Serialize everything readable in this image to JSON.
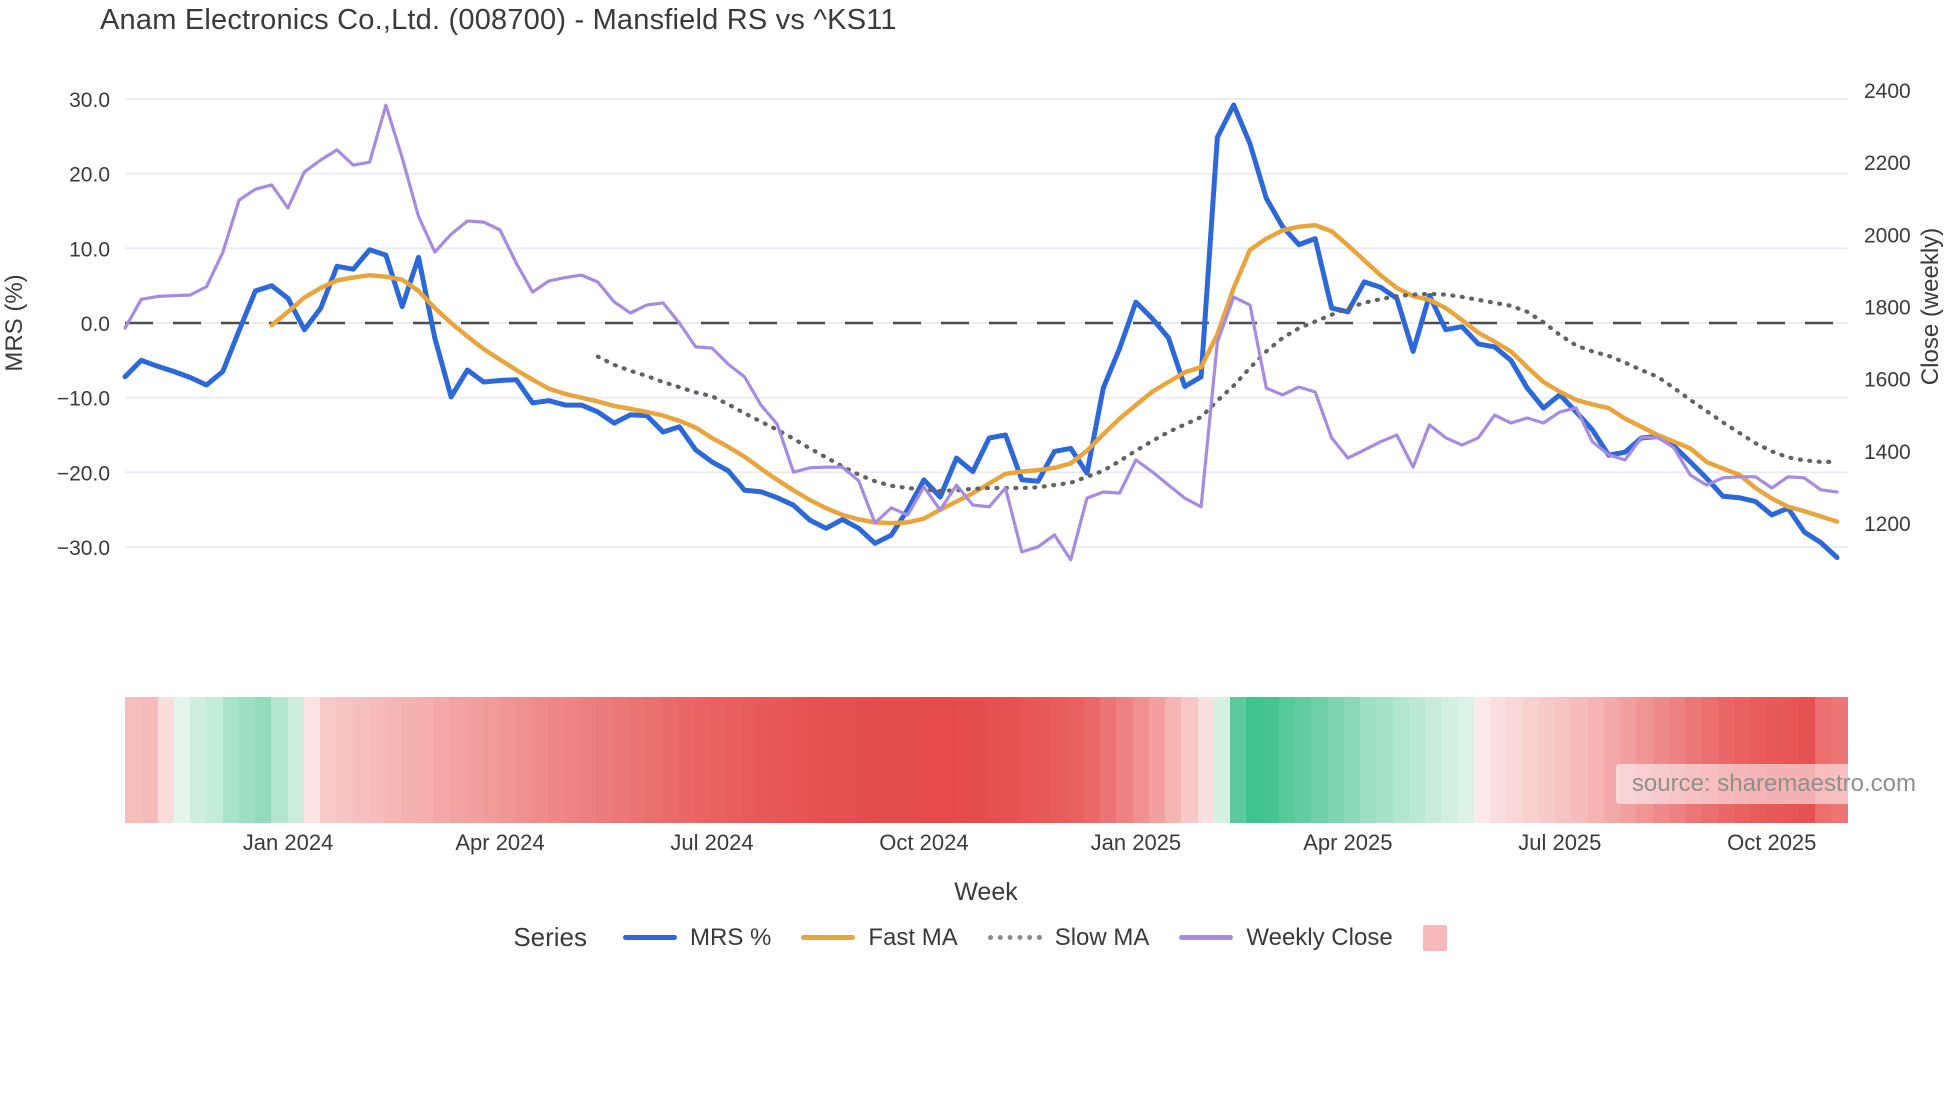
{
  "title": "Anam Electronics Co.,Ltd. (008700) - Mansfield RS vs ^KS11",
  "watermark": "source: sharemaestro.com",
  "legend": {
    "series_label": "Series",
    "items": [
      {
        "label": "MRS %",
        "style": "solid",
        "color": "#2d68d8"
      },
      {
        "label": "Fast MA",
        "style": "solid",
        "color": "#e9a53d"
      },
      {
        "label": "Slow MA",
        "style": "dotted",
        "color": "#8a8a8a"
      },
      {
        "label": "Weekly Close",
        "style": "solid",
        "color": "#a68ce0"
      },
      {
        "label": "",
        "style": "square",
        "color": "#f6b9bd"
      }
    ]
  },
  "chart_data": {
    "type": "line",
    "title": "Anam Electronics Co.,Ltd. (008700) - Mansfield RS vs ^KS11",
    "xlabel": "Week",
    "ylabel_left": "MRS (%)",
    "ylabel_right": "Close (weekly)",
    "ylim_left": [
      -30,
      30
    ],
    "ylim_right": [
      1200,
      2400
    ],
    "grid": "horizontal",
    "legend_position": "bottom",
    "x_unit": "week_index",
    "n_points": 106,
    "x_ticks": [
      {
        "label": "Jan 2024",
        "week": 10
      },
      {
        "label": "Apr 2024",
        "week": 23
      },
      {
        "label": "Jul 2024",
        "week": 36
      },
      {
        "label": "Oct 2024",
        "week": 49
      },
      {
        "label": "Jan 2025",
        "week": 62
      },
      {
        "label": "Apr 2025",
        "week": 75
      },
      {
        "label": "Jul 2025",
        "week": 88
      },
      {
        "label": "Oct 2025",
        "week": 101
      }
    ],
    "y_ticks_left": [
      {
        "label": "30.0",
        "value": 30
      },
      {
        "label": "20.0",
        "value": 20
      },
      {
        "label": "10.0",
        "value": 10
      },
      {
        "label": "0.0",
        "value": 0
      },
      {
        "label": "−10.0",
        "value": -10
      },
      {
        "label": "−20.0",
        "value": -20
      },
      {
        "label": "−30.0",
        "value": -30
      }
    ],
    "y_ticks_right": [
      {
        "label": "2400",
        "value": 2400
      },
      {
        "label": "2200",
        "value": 2200
      },
      {
        "label": "2000",
        "value": 2000
      },
      {
        "label": "1800",
        "value": 1800
      },
      {
        "label": "1600",
        "value": 1600
      },
      {
        "label": "1400",
        "value": 1400
      },
      {
        "label": "1200",
        "value": 1200
      }
    ],
    "zero_line": {
      "axis": "left",
      "value": 0,
      "style": "dashed",
      "color": "#4d4d4d"
    },
    "series": [
      {
        "name": "MRS %",
        "axis": "left",
        "color": "#2d68d8",
        "width": 5,
        "dash": null,
        "values": [
          -7.2,
          -5.0,
          -5.8,
          -6.5,
          -7.3,
          -8.3,
          -6.5,
          -1.0,
          4.3,
          5.0,
          3.3,
          -0.9,
          2.0,
          7.6,
          7.2,
          9.8,
          9.1,
          2.2,
          8.8,
          -2.0,
          -9.9,
          -6.3,
          -7.9,
          -7.7,
          -7.6,
          -10.7,
          -10.4,
          -11.0,
          -11.0,
          -11.9,
          -13.4,
          -12.3,
          -12.4,
          -14.6,
          -13.9,
          -17.0,
          -18.6,
          -19.8,
          -22.4,
          -22.6,
          -23.4,
          -24.4,
          -26.4,
          -27.5,
          -26.3,
          -27.5,
          -29.5,
          -28.4,
          -25.0,
          -21.0,
          -23.3,
          -18.1,
          -19.9,
          -15.4,
          -15.0,
          -21.0,
          -21.2,
          -17.2,
          -16.8,
          -20.1,
          -8.7,
          -3.4,
          2.8,
          0.6,
          -2.0,
          -8.5,
          -7.2,
          24.9,
          29.2,
          24.0,
          16.7,
          12.9,
          10.5,
          11.3,
          2.0,
          1.5,
          5.5,
          4.8,
          3.3,
          -3.8,
          3.7,
          -0.9,
          -0.5,
          -2.8,
          -3.2,
          -5.0,
          -8.7,
          -11.4,
          -9.6,
          -11.9,
          -14.3,
          -17.7,
          -17.3,
          -15.4,
          -15.2,
          -16.5,
          -18.6,
          -20.8,
          -23.2,
          -23.4,
          -23.9,
          -25.7,
          -24.8,
          -28.0,
          -29.4,
          -31.4
        ]
      },
      {
        "name": "Fast MA",
        "axis": "left",
        "color": "#e9a53d",
        "width": 4.5,
        "dash": null,
        "values": [
          null,
          null,
          null,
          null,
          null,
          null,
          null,
          null,
          null,
          -0.3,
          1.5,
          3.4,
          4.7,
          5.7,
          6.1,
          6.4,
          6.2,
          5.8,
          4.3,
          2.0,
          0.0,
          -1.8,
          -3.5,
          -4.9,
          -6.3,
          -7.6,
          -8.8,
          -9.5,
          -10.0,
          -10.5,
          -11.1,
          -11.5,
          -11.9,
          -12.4,
          -13.1,
          -14.0,
          -15.4,
          -16.6,
          -17.9,
          -19.5,
          -21.0,
          -22.4,
          -23.7,
          -24.8,
          -25.7,
          -26.3,
          -26.7,
          -26.8,
          -26.7,
          -26.2,
          -25.0,
          -23.9,
          -22.8,
          -21.5,
          -20.2,
          -19.9,
          -19.7,
          -19.4,
          -18.8,
          -17.1,
          -14.9,
          -12.8,
          -11.0,
          -9.2,
          -7.9,
          -6.6,
          -5.9,
          -1.5,
          4.7,
          9.8,
          11.3,
          12.4,
          12.9,
          13.1,
          12.3,
          10.4,
          8.4,
          6.4,
          4.7,
          3.6,
          3.1,
          2.0,
          0.4,
          -1.3,
          -2.5,
          -3.8,
          -5.9,
          -7.9,
          -9.2,
          -10.3,
          -10.9,
          -11.4,
          -12.8,
          -13.9,
          -15.0,
          -15.9,
          -16.8,
          -18.6,
          -19.5,
          -20.3,
          -22.1,
          -23.5,
          -24.6,
          -25.2,
          -25.9,
          -26.6
        ]
      },
      {
        "name": "Slow MA",
        "axis": "left",
        "color": "#636363",
        "width": 4.2,
        "dash": "1 8.5",
        "values": [
          null,
          null,
          null,
          null,
          null,
          null,
          null,
          null,
          null,
          null,
          null,
          null,
          null,
          null,
          null,
          null,
          null,
          null,
          null,
          null,
          null,
          null,
          null,
          null,
          null,
          null,
          null,
          null,
          null,
          -4.5,
          -5.6,
          -6.4,
          -7.1,
          -7.9,
          -8.6,
          -9.3,
          -9.8,
          -10.9,
          -12.1,
          -13.2,
          -14.3,
          -15.5,
          -16.8,
          -18.0,
          -19.2,
          -20.3,
          -21.2,
          -21.8,
          -22.1,
          -22.3,
          -22.5,
          -22.4,
          -22.2,
          -22.1,
          -22.1,
          -22.1,
          -22.0,
          -21.7,
          -21.4,
          -20.6,
          -19.8,
          -18.5,
          -17.1,
          -15.8,
          -14.6,
          -13.6,
          -12.6,
          -10.4,
          -8.4,
          -6.0,
          -3.8,
          -2.0,
          -0.7,
          0.2,
          1.1,
          2.0,
          2.7,
          3.2,
          3.6,
          3.8,
          3.9,
          3.8,
          3.5,
          3.1,
          2.7,
          2.3,
          1.5,
          0.1,
          -1.6,
          -3.0,
          -3.8,
          -4.4,
          -5.3,
          -6.3,
          -7.2,
          -8.7,
          -10.3,
          -11.8,
          -13.3,
          -14.7,
          -16.1,
          -17.2,
          -18.0,
          -18.4,
          -18.6,
          -18.6
        ]
      },
      {
        "name": "Weekly Close",
        "axis": "right",
        "color": "#a68ce0",
        "width": 3.2,
        "dash": null,
        "values": [
          1740,
          1820,
          1828,
          1830,
          1832,
          1855,
          1950,
          2095,
          2125,
          2137,
          2073,
          2173,
          2206,
          2234,
          2192,
          2200,
          2358,
          2212,
          2050,
          1951,
          2000,
          2037,
          2034,
          2012,
          1920,
          1840,
          1871,
          1880,
          1887,
          1868,
          1813,
          1782,
          1804,
          1810,
          1754,
          1688,
          1685,
          1640,
          1605,
          1527,
          1474,
          1341,
          1353,
          1355,
          1355,
          1317,
          1200,
          1242,
          1222,
          1300,
          1236,
          1305,
          1250,
          1245,
          1297,
          1120,
          1134,
          1167,
          1098,
          1269,
          1286,
          1283,
          1375,
          1342,
          1305,
          1269,
          1245,
          1702,
          1826,
          1804,
          1574,
          1555,
          1577,
          1563,
          1436,
          1380,
          1402,
          1425,
          1444,
          1355,
          1472,
          1436,
          1416,
          1436,
          1499,
          1477,
          1491,
          1477,
          1508,
          1519,
          1425,
          1389,
          1375,
          1436,
          1438,
          1408,
          1333,
          1305,
          1325,
          1328,
          1328,
          1297,
          1328,
          1325,
          1292,
          1286
        ]
      }
    ],
    "heatmap_strip": {
      "description": "weekly color band under chart",
      "colors": [
        "#f6bdbd",
        "#f5baba",
        "#fadcdc",
        "#e3f5ec",
        "#cfeee0",
        "#c2ebd8",
        "#a8e3c9",
        "#9cdfc2",
        "#92dcbc",
        "#b4e6cf",
        "#ccecdc",
        "#fbe4e4",
        "#f8caca",
        "#f7c4c4",
        "#f6bfbf",
        "#f6bbbb",
        "#f5b6b6",
        "#f4b1b1",
        "#f4aeae",
        "#f3a9a9",
        "#f2a4a4",
        "#f19f9f",
        "#f09a9a",
        "#f09696",
        "#ef9191",
        "#ee8c8c",
        "#ee8888",
        "#ed8383",
        "#ec7f7f",
        "#ec7b7b",
        "#eb7777",
        "#eb7373",
        "#ea6f6f",
        "#ea6b6b",
        "#e96767",
        "#e96464",
        "#e86161",
        "#e85e5e",
        "#e75b5b",
        "#e75959",
        "#e65656",
        "#e65454",
        "#e65252",
        "#e55151",
        "#e55050",
        "#e54e4e",
        "#e54d4d",
        "#e54c4c",
        "#e54c4c",
        "#e54b4b",
        "#e54b4b",
        "#e54c4c",
        "#e64e4e",
        "#e65050",
        "#e65252",
        "#e75555",
        "#e75858",
        "#e85c5c",
        "#e86060",
        "#ea6868",
        "#ec7474",
        "#ee8282",
        "#f09191",
        "#f2a0a0",
        "#f5b4b4",
        "#f8c7c7",
        "#fbdede",
        "#d4f1e4",
        "#5bcb9e",
        "#3fc48e",
        "#45c691",
        "#58ca9a",
        "#63cda1",
        "#70d1a9",
        "#7fd5b1",
        "#8bd9b9",
        "#9adfc2",
        "#a5e2c8",
        "#b2e6cf",
        "#bce9d5",
        "#c8ecdb",
        "#d2efe2",
        "#daf2e7",
        "#fbeaea",
        "#fbdfdf",
        "#fad7d7",
        "#f9d0d0",
        "#f8c9c9",
        "#f7c2c2",
        "#f6bbbb",
        "#f5b3b3",
        "#f3a9a9",
        "#f29f9f",
        "#f09494",
        "#ef8a8a",
        "#ee8181",
        "#ec7777",
        "#eb6f6f",
        "#ea6767",
        "#e96161",
        "#e85c5c",
        "#e75858",
        "#e75555",
        "#e65252",
        "#ed6e6e",
        "#ee7575"
      ]
    }
  }
}
